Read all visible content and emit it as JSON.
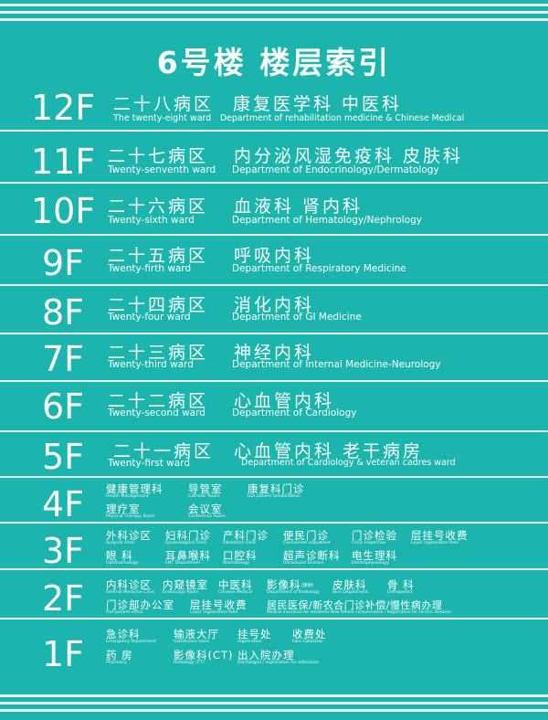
{
  "title": "6号楼  楼层索引",
  "floors": {
    "f12": {
      "floor": "12F",
      "ward_cn": "二十八病区",
      "ward_en": "The twenty-eight ward",
      "dept_cn": "康复医学科   中医科",
      "dept_en": "Department of rehabilitation medicine & Chinese Medical"
    },
    "f11": {
      "floor": "11F",
      "ward_cn": "二十七病区",
      "ward_en": "Twenty-senventh ward",
      "dept_cn": "内分泌风湿免疫科   皮肤科",
      "dept_en": "Department of Endocrinology/Dermatology"
    },
    "f10": {
      "floor": "10F",
      "ward_cn": "二十六病区",
      "ward_en": "Twenty-sixth ward",
      "dept_cn": "血液科   肾内科",
      "dept_en": "Department of Hematology/Nephrology"
    },
    "f9": {
      "floor": "9F",
      "ward_cn": "二十五病区",
      "ward_en": "Twenty-firth ward",
      "dept_cn": "呼吸内科",
      "dept_en": "Department of Respiratory Medicine"
    },
    "f8": {
      "floor": "8F",
      "ward_cn": "二十四病区",
      "ward_en": "Twenty-four ward",
      "dept_cn": "消化内科",
      "dept_en": "Department of GI Medicine"
    },
    "f7": {
      "floor": "7F",
      "ward_cn": "二十三病区",
      "ward_en": "Twenty-third ward",
      "dept_cn": "神经内科",
      "dept_en": "Department of Internal Medicine-Neurology"
    },
    "f6": {
      "floor": "6F",
      "ward_cn": "二十二病区",
      "ward_en": "Twenty-second ward",
      "dept_cn": "心血管内科",
      "dept_en": "Department of Cardiology"
    },
    "f5": {
      "floor": "5F",
      "ward_cn": "二十一病区",
      "ward_en": "Twenty-first ward",
      "dept_cn": "心血管内科   老干病房",
      "dept_en": "Department of Cardiology & veteran cadres ward"
    },
    "f4": {
      "floor": "4F",
      "items": [
        {
          "cn": "健康管理科",
          "en": "Health Management"
        },
        {
          "cn": "导管室",
          "en": "Catheter Room"
        },
        {
          "cn": "康复科门诊",
          "en": "Out patient rehabilitation"
        },
        {
          "cn": "理疗室",
          "en": "Physical Therapy Room"
        },
        {
          "cn": "会议室",
          "en": "Conference Room"
        }
      ]
    },
    "f3": {
      "floor": "3F",
      "items": [
        {
          "cn": "外科诊区",
          "en": "Surgical clinic"
        },
        {
          "cn": "妇科门诊",
          "en": "Gynecological clinic"
        },
        {
          "cn": "产科门诊",
          "en": "Obstetrics clinic"
        },
        {
          "cn": "便民门诊",
          "en": "Convenient outpatient"
        },
        {
          "cn": "门诊检验",
          "en": "Clinic inspection"
        },
        {
          "cn": "层挂号收费",
          "en": "Layer registration fees"
        },
        {
          "cn": "眼   科",
          "en": "Ophthalmology"
        },
        {
          "cn": "耳鼻喉科",
          "en": "ENT Department"
        },
        {
          "cn": "口腔科",
          "en": "Stomatology"
        },
        {
          "cn": "超声诊断科",
          "en": "Ultrasound Division"
        },
        {
          "cn": "电生理科",
          "en": "Electrophysiology"
        }
      ]
    },
    "f2": {
      "floor": "2F",
      "items": [
        {
          "cn": "内科诊区",
          "en": "Internal Medicine Clinic"
        },
        {
          "cn": "内窥镜室",
          "en": "Endoscopy Room"
        },
        {
          "cn": "中医科",
          "en": "Chinese Medical"
        },
        {
          "cn": "影像科",
          "note": "(放射)",
          "en": "Department of Radiology"
        },
        {
          "cn": "皮肤科",
          "en": "Skin Department"
        },
        {
          "cn": "骨   科",
          "en": "Orthopedics"
        },
        {
          "cn": "门诊部办公室",
          "en": "Out-patient office"
        },
        {
          "cn": "层挂号收费",
          "en": "Layer registration fees"
        },
        {
          "cn": "居民医保/新农合门诊补偿/慢性病办理",
          "en": "Medical insurance for residents/ New Patient compensation / Registration for chronic diseases"
        }
      ]
    },
    "f1": {
      "floor": "1F",
      "items": [
        {
          "cn": "急诊科",
          "en": "Emergency department"
        },
        {
          "cn": "输液大厅",
          "en": "transfusion room"
        },
        {
          "cn": "挂号处",
          "en": "registration"
        },
        {
          "cn": "收费处",
          "en": "Fare Collection"
        },
        {
          "cn": "药   房",
          "en": "Pharmacy"
        },
        {
          "cn": "影像科(CT)",
          "en": "Radiology (CT)"
        },
        {
          "cn": "出入院办理",
          "en": "Discharged / registration for admission"
        }
      ]
    }
  }
}
